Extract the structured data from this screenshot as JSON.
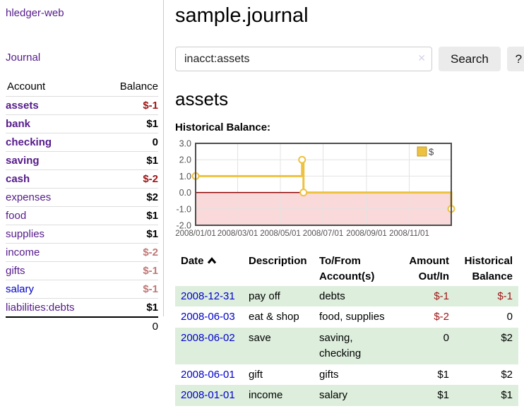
{
  "colors": {
    "purple": "#551a8b",
    "blue": "#0000cc",
    "neg": "#9e1414",
    "rose": "#c17676",
    "stripe": "#ddeedd",
    "rule": "#dddddd",
    "btn-bg": "#ebebeb"
  },
  "app": {
    "brand": "hledger-web",
    "nav_journal": "Journal"
  },
  "sidebar": {
    "table": {
      "headers": [
        "Account",
        "Balance"
      ],
      "rows": [
        {
          "account": "assets",
          "balance": "$-1",
          "depth": 1,
          "bold": true,
          "tone": "neg"
        },
        {
          "account": "bank",
          "balance": "$1",
          "depth": 2,
          "bold": true,
          "tone": ""
        },
        {
          "account": "checking",
          "balance": "0",
          "depth": 3,
          "bold": true,
          "tone": ""
        },
        {
          "account": "saving",
          "balance": "$1",
          "depth": 3,
          "bold": true,
          "tone": ""
        },
        {
          "account": "cash",
          "balance": "$-2",
          "depth": 2,
          "bold": true,
          "tone": "neg"
        },
        {
          "account": "expenses",
          "balance": "$2",
          "depth": 1,
          "bold": false,
          "tone": ""
        },
        {
          "account": "food",
          "balance": "$1",
          "depth": 2,
          "bold": false,
          "tone": ""
        },
        {
          "account": "supplies",
          "balance": "$1",
          "depth": 2,
          "bold": false,
          "tone": ""
        },
        {
          "account": "income",
          "balance": "$-2",
          "depth": 1,
          "bold": false,
          "tone": "rose"
        },
        {
          "account": "gifts",
          "balance": "$-1",
          "depth": 2,
          "bold": false,
          "tone": "rose"
        },
        {
          "account": "salary",
          "balance": "$-1",
          "depth": 2,
          "bold": false,
          "tone": "rose",
          "blue": true
        },
        {
          "account": "liabilities:debts",
          "balance": "$1",
          "depth": 1,
          "bold": false,
          "tone": ""
        }
      ],
      "total": "0"
    }
  },
  "header": {
    "title": "sample.journal"
  },
  "search": {
    "value": "inacct:assets",
    "clear_icon": "✕",
    "button": "Search",
    "help_button": "?"
  },
  "account_page": {
    "title": "assets",
    "chart_label": "Historical Balance:"
  },
  "chart_data": {
    "type": "line",
    "title": "Historical Balance",
    "xlabel": "",
    "ylabel": "",
    "grid": true,
    "step": true,
    "ylim": [
      -2,
      3
    ],
    "y_ticks": [
      "3.0",
      "2.0",
      "1.0",
      "0.0",
      "-1.0",
      "-2.0"
    ],
    "x_range": [
      "2008-01-01",
      "2008-12-31"
    ],
    "x_ticks": [
      {
        "label": "2008/01/01",
        "date": "2008-01-01"
      },
      {
        "label": "2008/03/01",
        "date": "2008-03-01"
      },
      {
        "label": "2008/05/01",
        "date": "2008-05-01"
      },
      {
        "label": "2008/07/01",
        "date": "2008-07-01"
      },
      {
        "label": "2008/09/01",
        "date": "2008-09-01"
      },
      {
        "label": "2008/11/01",
        "date": "2008-11-01"
      }
    ],
    "series": [
      {
        "name": "$",
        "color": "#edc240",
        "points": [
          [
            "2008-01-01",
            1
          ],
          [
            "2008-06-01",
            2
          ],
          [
            "2008-06-03",
            0
          ],
          [
            "2008-12-31",
            -1
          ]
        ]
      }
    ],
    "legend": {
      "label": "$",
      "position": "top-right"
    },
    "negative_fill": "#f9d9d9",
    "zero_line_color": "#8b0000",
    "grid_color": "#e3e3e3",
    "border_color": "#4d4d4d",
    "tick_label_color": "#545454"
  },
  "register": {
    "headers": [
      "Date",
      "Description",
      "To/From Account(s)",
      "Amount Out/In",
      "Historical Balance"
    ],
    "rows": [
      {
        "date": "2008-12-31",
        "description": "pay off",
        "accounts": "debts",
        "amount": "$-1",
        "balance": "$-1",
        "amount_tone": "neg",
        "balance_tone": "neg"
      },
      {
        "date": "2008-06-03",
        "description": "eat & shop",
        "accounts": "food, supplies",
        "amount": "$-2",
        "balance": "0",
        "amount_tone": "neg",
        "balance_tone": ""
      },
      {
        "date": "2008-06-02",
        "description": "save",
        "accounts": "saving, checking",
        "amount": "0",
        "balance": "$2",
        "amount_tone": "",
        "balance_tone": ""
      },
      {
        "date": "2008-06-01",
        "description": "gift",
        "accounts": "gifts",
        "amount": "$1",
        "balance": "$2",
        "amount_tone": "",
        "balance_tone": ""
      },
      {
        "date": "2008-01-01",
        "description": "income",
        "accounts": "salary",
        "amount": "$1",
        "balance": "$1",
        "amount_tone": "",
        "balance_tone": ""
      }
    ]
  }
}
